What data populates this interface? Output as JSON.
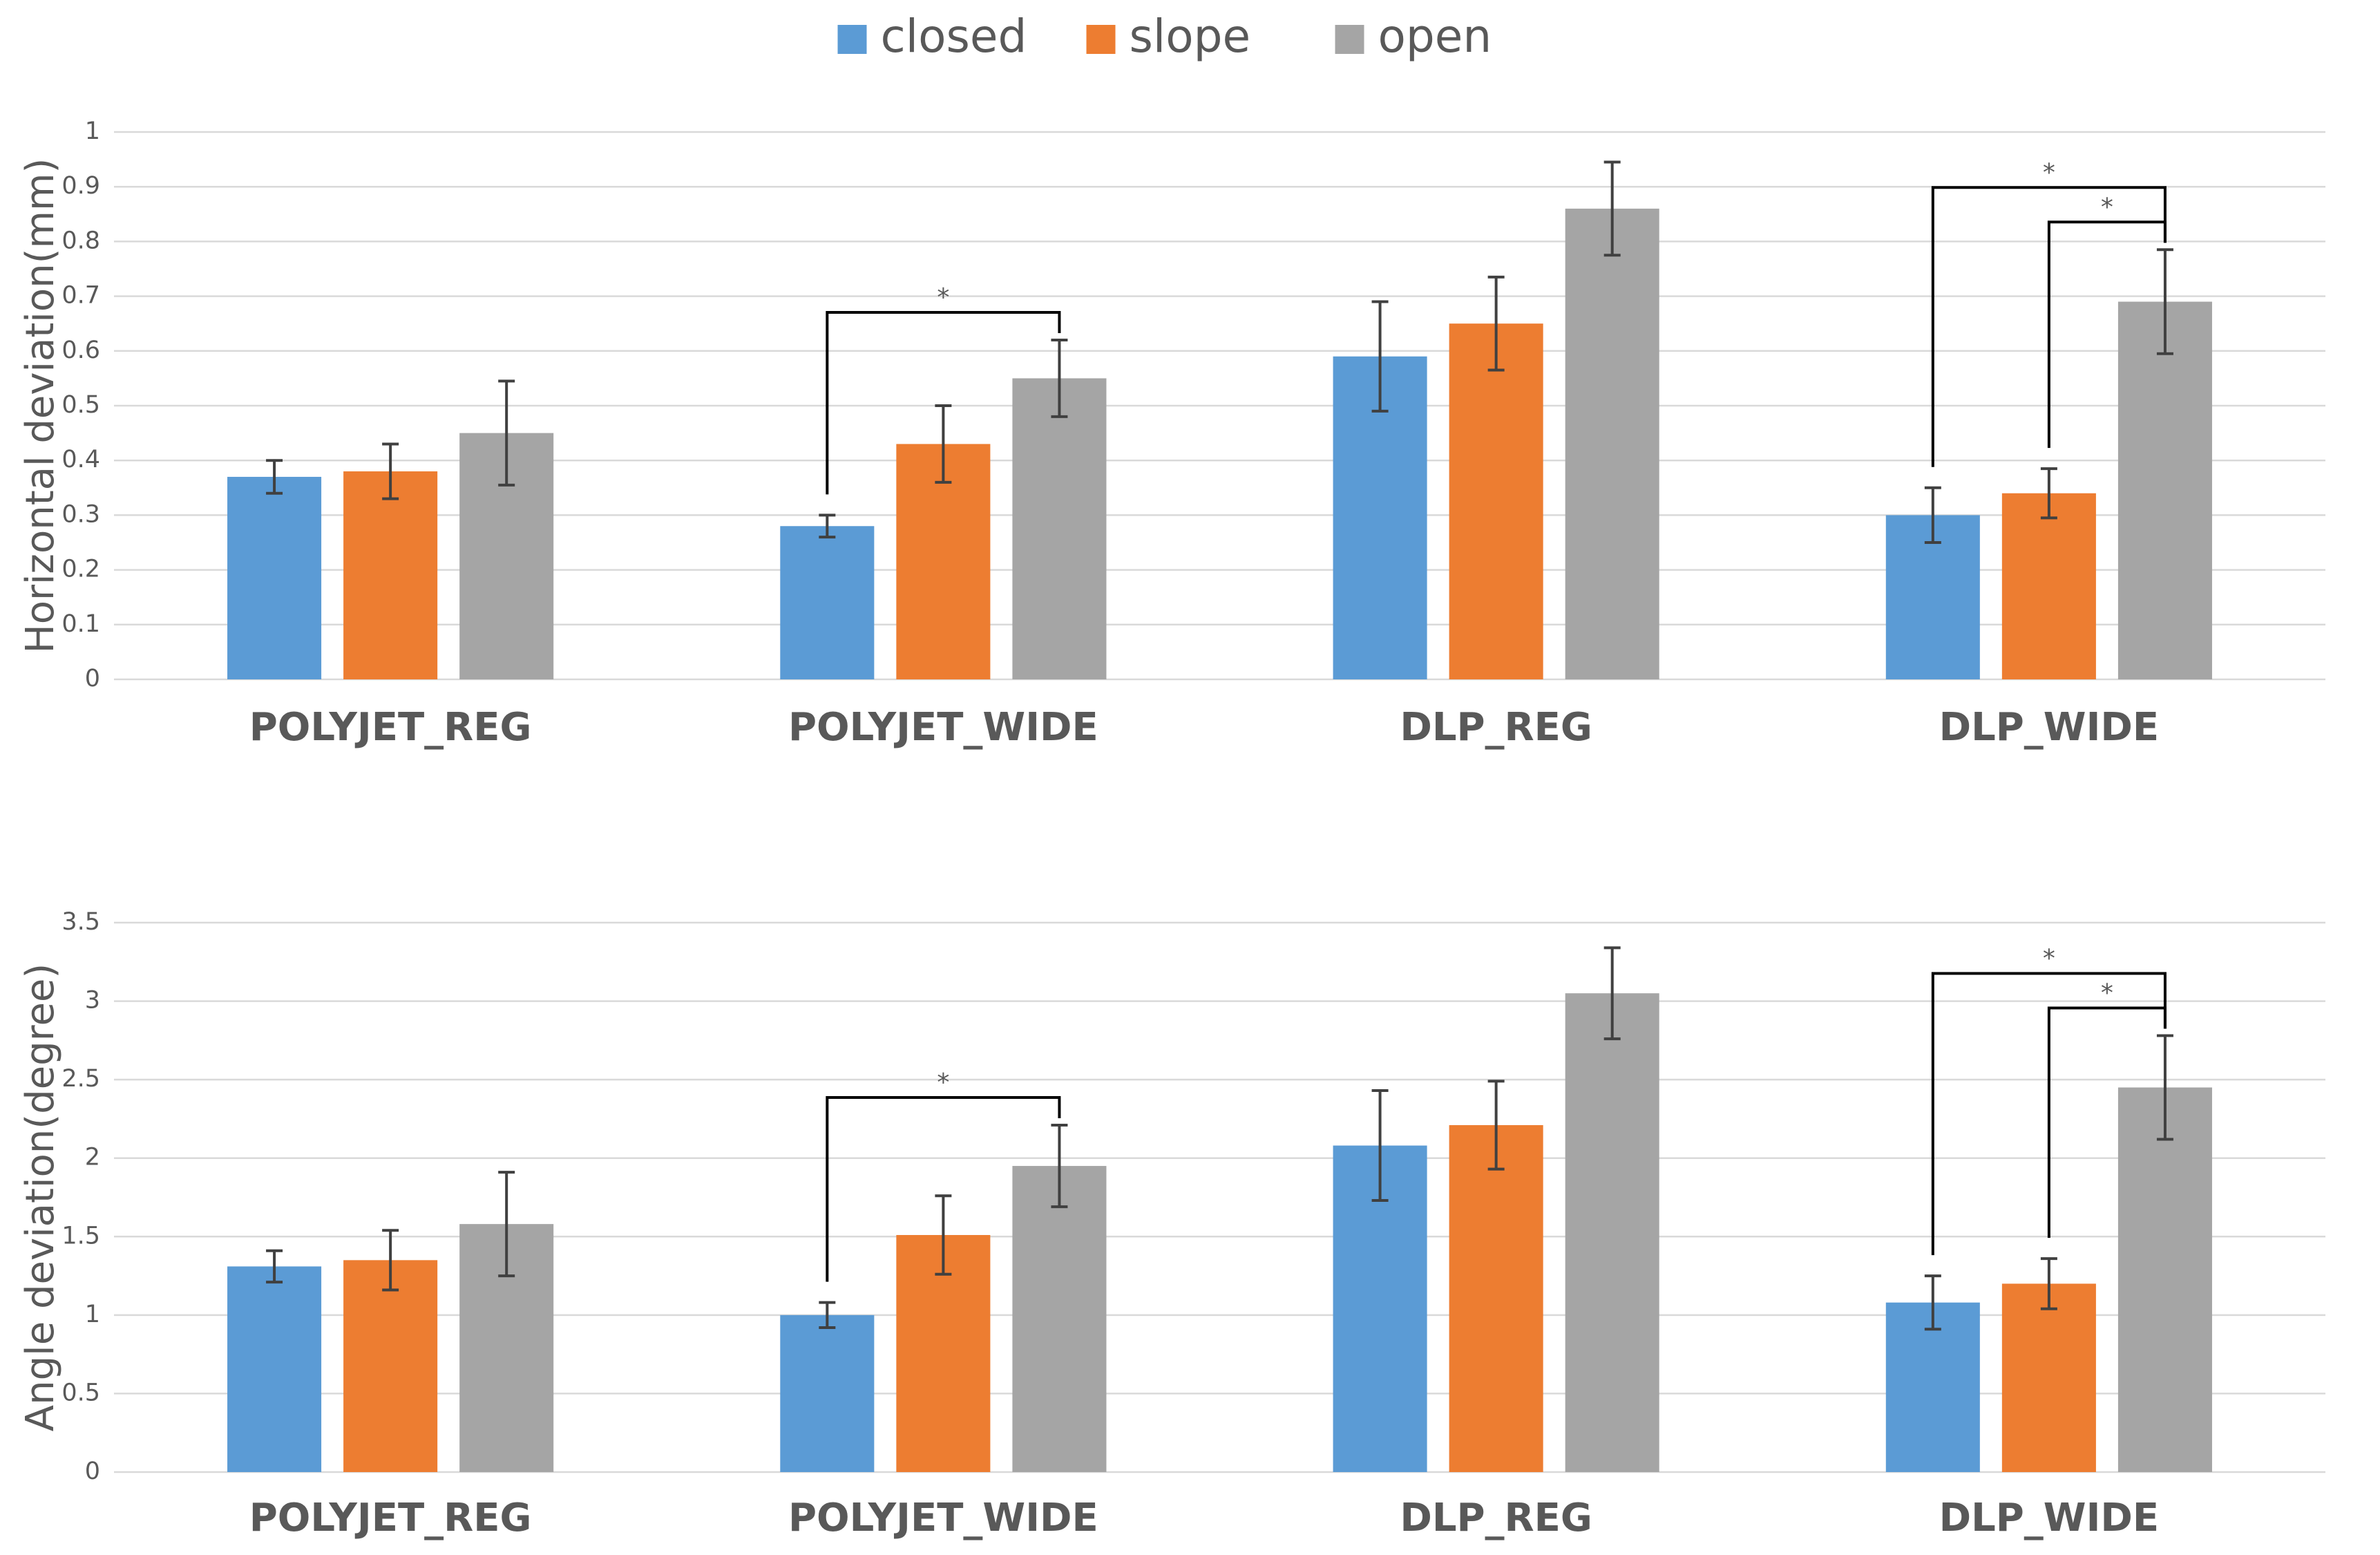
{
  "chart_data": [
    {
      "type": "bar",
      "ylabel": "Horizontal deviation(mm)",
      "categories": [
        "POLYJET_REG",
        "POLYJET_WIDE",
        "DLP_REG",
        "DLP_WIDE"
      ],
      "series": [
        {
          "name": "closed",
          "color": "#5b9bd5",
          "values": [
            0.37,
            0.28,
            0.59,
            0.3
          ],
          "errors": [
            0.03,
            0.02,
            0.1,
            0.05
          ]
        },
        {
          "name": "slope",
          "color": "#ed7d31",
          "values": [
            0.38,
            0.43,
            0.65,
            0.34
          ],
          "errors": [
            0.05,
            0.07,
            0.085,
            0.045
          ]
        },
        {
          "name": "open",
          "color": "#a5a5a5",
          "values": [
            0.45,
            0.55,
            0.86,
            0.69
          ],
          "errors": [
            0.095,
            0.07,
            0.085,
            0.095
          ]
        }
      ],
      "ylim": [
        0,
        1
      ],
      "yticks": [
        0,
        0.1,
        0.2,
        0.3,
        0.4,
        0.5,
        0.6,
        0.7,
        0.8,
        0.9,
        1
      ],
      "grid": true,
      "legend": "top",
      "annotations": [
        {
          "text": "*",
          "category": 1,
          "between": [
            0,
            2
          ]
        },
        {
          "text": "*",
          "category": 3,
          "between": [
            0,
            2
          ]
        },
        {
          "text": "*",
          "category": 3,
          "between": [
            1,
            2
          ]
        }
      ]
    },
    {
      "type": "bar",
      "ylabel": "Angle deviation(degree)",
      "categories": [
        "POLYJET_REG",
        "POLYJET_WIDE",
        "DLP_REG",
        "DLP_WIDE"
      ],
      "series": [
        {
          "color": "#5b9bd5",
          "values": [
            1.31,
            1.0,
            2.08,
            1.08
          ],
          "errors": [
            0.1,
            0.08,
            0.35,
            0.17
          ]
        },
        {
          "color": "#ed7d31",
          "values": [
            1.35,
            1.51,
            2.21,
            1.2
          ],
          "errors": [
            0.19,
            0.25,
            0.28,
            0.16
          ]
        },
        {
          "color": "#a5a5a5",
          "values": [
            1.58,
            1.95,
            3.05,
            2.45
          ],
          "errors": [
            0.33,
            0.26,
            0.29,
            0.33
          ]
        }
      ],
      "ylim": [
        0,
        3.5
      ],
      "yticks": [
        0,
        0.5,
        1,
        1.5,
        2,
        2.5,
        3,
        3.5
      ],
      "grid": true,
      "annotations": [
        {
          "text": "*",
          "category": 1,
          "between": [
            0,
            2
          ]
        },
        {
          "text": "*",
          "category": 3,
          "between": [
            0,
            2
          ]
        },
        {
          "text": "*",
          "category": 3,
          "between": [
            1,
            2
          ]
        }
      ]
    }
  ]
}
